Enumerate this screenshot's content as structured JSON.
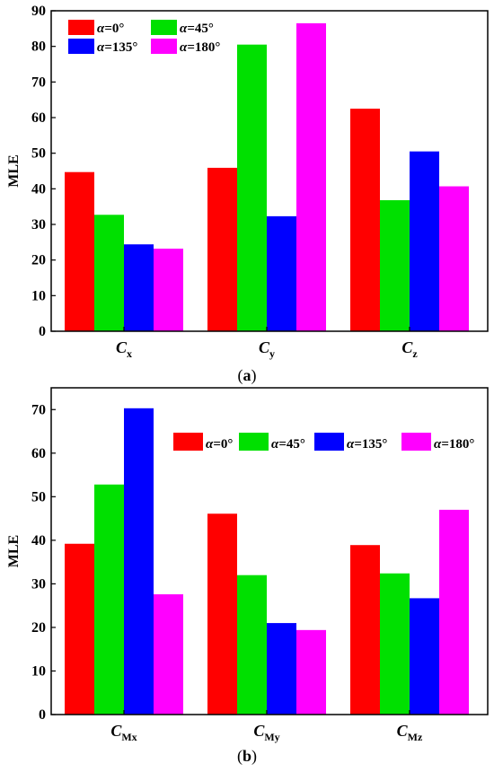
{
  "colors": {
    "alpha0": "#ff0000",
    "alpha45": "#00e000",
    "alpha135": "#0000ff",
    "alpha180": "#ff00ff"
  },
  "chart_data": [
    {
      "type": "bar",
      "caption": "(a)",
      "ylabel": "MLE",
      "ylim": [
        0,
        90
      ],
      "yticks": [
        0,
        10,
        20,
        30,
        40,
        50,
        60,
        70,
        80,
        90
      ],
      "categories": [
        {
          "main": "C",
          "sub": "x"
        },
        {
          "main": "C",
          "sub": "y"
        },
        {
          "main": "C",
          "sub": "z"
        }
      ],
      "legend_placement": "top-left",
      "series": [
        {
          "name": "α=0°",
          "color_key": "alpha0",
          "values": [
            44.7,
            45.9,
            62.5
          ]
        },
        {
          "name": "α=45°",
          "color_key": "alpha45",
          "values": [
            32.7,
            80.5,
            36.8
          ]
        },
        {
          "name": "α=135°",
          "color_key": "alpha135",
          "values": [
            24.4,
            32.3,
            50.5
          ]
        },
        {
          "name": "α=180°",
          "color_key": "alpha180",
          "values": [
            23.2,
            86.5,
            40.7
          ]
        }
      ]
    },
    {
      "type": "bar",
      "caption": "(b)",
      "ylabel": "MLE",
      "ylim": [
        0,
        75
      ],
      "yticks": [
        0,
        10,
        20,
        30,
        40,
        50,
        60,
        70
      ],
      "categories": [
        {
          "main": "C",
          "sub": "Mx"
        },
        {
          "main": "C",
          "sub": "My"
        },
        {
          "main": "C",
          "sub": "Mz"
        }
      ],
      "legend_placement": "top-right",
      "series": [
        {
          "name": "α=0°",
          "color_key": "alpha0",
          "values": [
            39.2,
            46.1,
            38.9
          ]
        },
        {
          "name": "α=45°",
          "color_key": "alpha45",
          "values": [
            52.8,
            32.0,
            32.4
          ]
        },
        {
          "name": "α=135°",
          "color_key": "alpha135",
          "values": [
            70.3,
            21.0,
            26.7
          ]
        },
        {
          "name": "α=180°",
          "color_key": "alpha180",
          "values": [
            27.6,
            19.4,
            47.0
          ]
        }
      ]
    }
  ]
}
